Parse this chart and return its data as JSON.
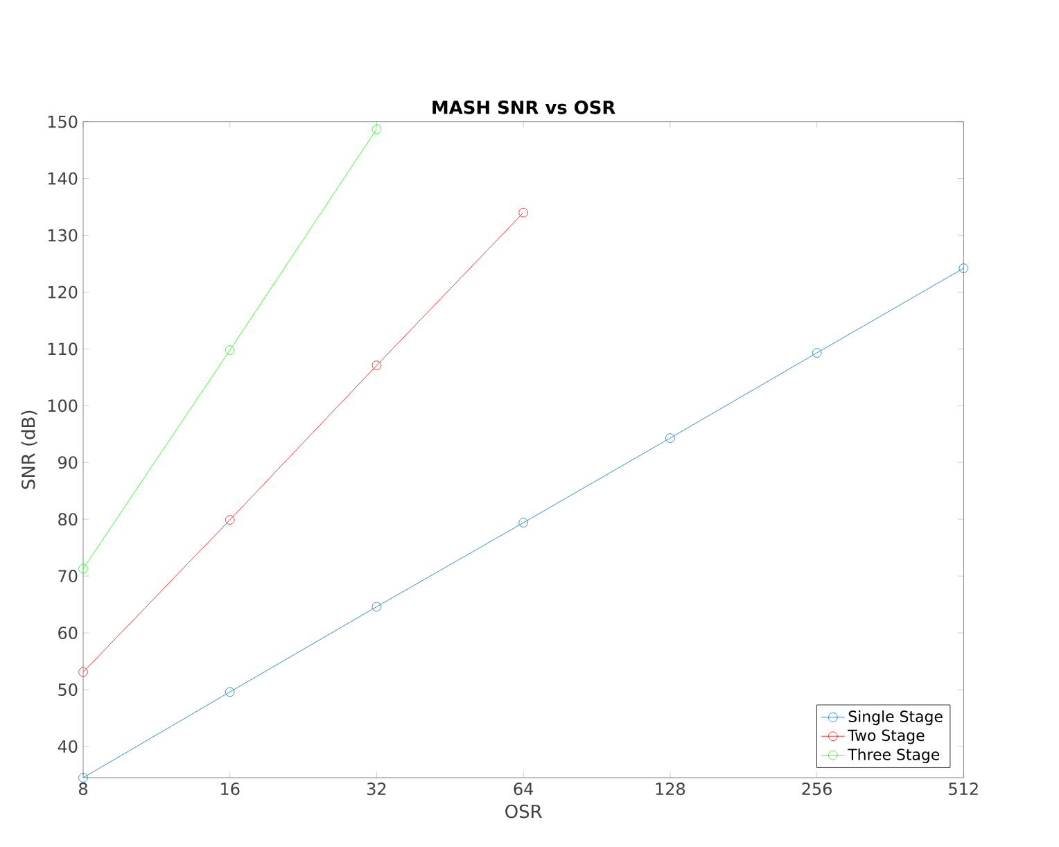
{
  "chart_data": {
    "type": "line",
    "title": "MASH SNR vs OSR",
    "xlabel": "OSR",
    "ylabel": "SNR (dB)",
    "log": "x",
    "xlim": [
      8,
      512
    ],
    "xticks": [
      8,
      16,
      32,
      64,
      128,
      256,
      512
    ],
    "ylim": [
      34.5,
      150
    ],
    "yticks": [
      40,
      50,
      60,
      70,
      80,
      90,
      100,
      110,
      120,
      130,
      140,
      150
    ],
    "grid": false,
    "legend": "bottom right",
    "marker": "circle",
    "line_style": "solid",
    "series": [
      {
        "name": "Single Stage",
        "color": "#0072bd",
        "x": [
          8,
          16,
          32,
          64,
          128,
          256,
          512
        ],
        "values": [
          34.5,
          49.6,
          64.6,
          79.4,
          94.3,
          109.3,
          124.2
        ]
      },
      {
        "name": "Two Stage",
        "color": "#ff0000",
        "x": [
          8,
          16,
          32,
          64
        ],
        "values": [
          53.1,
          79.9,
          107.1,
          134.0
        ]
      },
      {
        "name": "Three Stage",
        "color": "#00ff00",
        "x": [
          8,
          16,
          32
        ],
        "values": [
          71.3,
          109.8,
          148.7
        ]
      }
    ]
  }
}
